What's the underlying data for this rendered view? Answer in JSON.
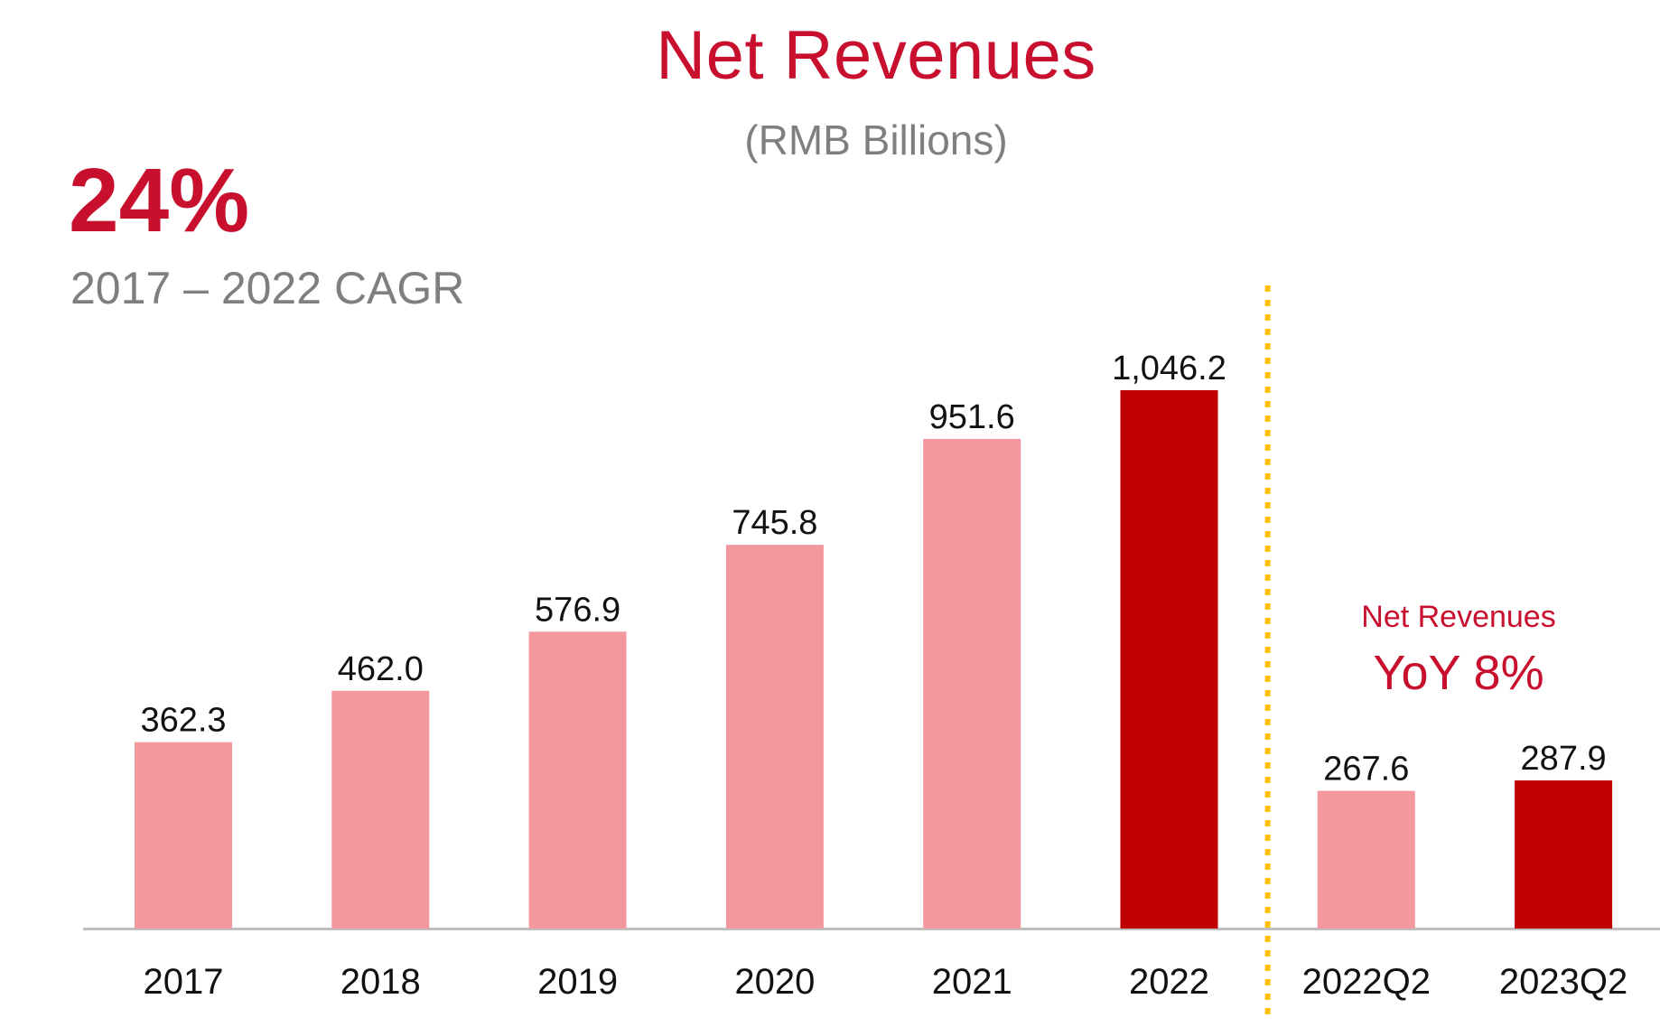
{
  "title": "Net Revenues",
  "subtitle": "(RMB Billions)",
  "kpi": {
    "value": "24%",
    "caption": "2017 – 2022 CAGR"
  },
  "annotation": {
    "label": "Net Revenues",
    "value": "YoY 8%"
  },
  "colors": {
    "title": "#c8102e",
    "subtitle": "#7f7f7f",
    "bar_light": "#f4989f",
    "bar_dark": "#c00000",
    "divider": "#ffc000",
    "axis": "#bfbfbf"
  },
  "chart_data": {
    "type": "bar",
    "title": "Net Revenues",
    "subtitle": "(RMB Billions)",
    "xlabel": "",
    "ylabel": "",
    "categories": [
      "2017",
      "2018",
      "2019",
      "2020",
      "2021",
      "2022",
      "2022Q2",
      "2023Q2"
    ],
    "values": [
      362.3,
      462.0,
      576.9,
      745.8,
      951.6,
      1046.2,
      267.6,
      287.9
    ],
    "value_labels": [
      "362.3",
      "462.0",
      "576.9",
      "745.8",
      "951.6",
      "1,046.2",
      "267.6",
      "287.9"
    ],
    "highlight": [
      false,
      false,
      false,
      false,
      false,
      true,
      false,
      true
    ],
    "ylim": [
      0,
      1100
    ],
    "grid": false,
    "legend": "none",
    "divider_after_category": "2022"
  }
}
